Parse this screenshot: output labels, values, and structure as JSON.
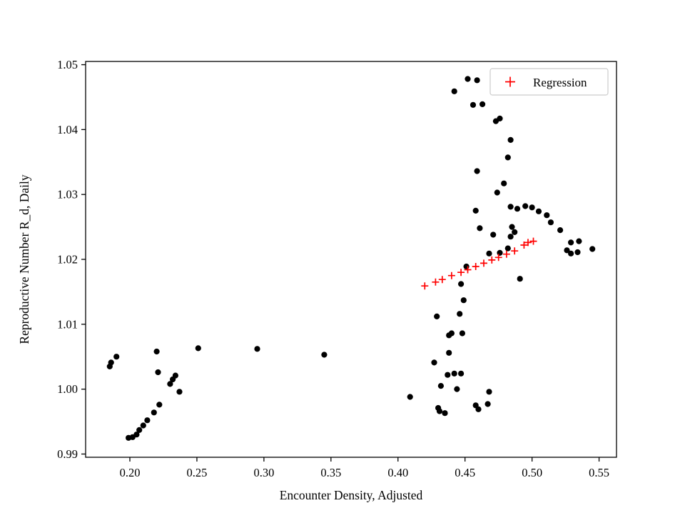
{
  "figure": {
    "background": "#ffffff"
  },
  "chart_data": {
    "type": "scatter",
    "title": "",
    "xlabel": "Encounter Density, Adjusted",
    "ylabel": "Reproductive Number R_d, Daily",
    "xlim": [
      0.167,
      0.563
    ],
    "ylim": [
      0.9895,
      1.0505
    ],
    "xticks": [
      0.2,
      0.25,
      0.3,
      0.35,
      0.4,
      0.45,
      0.5,
      0.55
    ],
    "yticks": [
      0.99,
      1.0,
      1.01,
      1.02,
      1.03,
      1.04,
      1.05
    ],
    "grid": false,
    "legend": {
      "position": "upper right",
      "entries": [
        {
          "label": "Regression",
          "marker": "plus",
          "color": "#ff0000"
        }
      ]
    },
    "series": [
      {
        "name": "observations",
        "marker": "circle",
        "color": "#000000",
        "points": [
          [
            0.185,
            1.0035
          ],
          [
            0.186,
            1.0041
          ],
          [
            0.19,
            1.005
          ],
          [
            0.199,
            0.9925
          ],
          [
            0.202,
            0.9926
          ],
          [
            0.205,
            0.993
          ],
          [
            0.207,
            0.9937
          ],
          [
            0.21,
            0.9944
          ],
          [
            0.213,
            0.9952
          ],
          [
            0.218,
            0.9964
          ],
          [
            0.222,
            0.9976
          ],
          [
            0.22,
            1.0058
          ],
          [
            0.221,
            1.0026
          ],
          [
            0.23,
            1.0008
          ],
          [
            0.232,
            1.0015
          ],
          [
            0.234,
            1.0021
          ],
          [
            0.237,
            0.9996
          ],
          [
            0.251,
            1.0063
          ],
          [
            0.295,
            1.0062
          ],
          [
            0.345,
            1.0053
          ],
          [
            0.409,
            0.9988
          ],
          [
            0.427,
            1.0041
          ],
          [
            0.429,
            1.0112
          ],
          [
            0.43,
            0.9971
          ],
          [
            0.431,
            0.9966
          ],
          [
            0.435,
            0.9963
          ],
          [
            0.432,
            1.0005
          ],
          [
            0.437,
            1.0022
          ],
          [
            0.438,
            1.0056
          ],
          [
            0.438,
            1.0083
          ],
          [
            0.44,
            1.0086
          ],
          [
            0.442,
            1.0024
          ],
          [
            0.444,
            1.0
          ],
          [
            0.447,
            1.0024
          ],
          [
            0.448,
            1.0086
          ],
          [
            0.447,
            1.0162
          ],
          [
            0.449,
            1.0137
          ],
          [
            0.446,
            1.0116
          ],
          [
            0.451,
            1.0189
          ],
          [
            0.458,
            0.9975
          ],
          [
            0.46,
            0.9969
          ],
          [
            0.467,
            0.9977
          ],
          [
            0.468,
            0.9996
          ],
          [
            0.442,
            1.0459
          ],
          [
            0.452,
            1.0478
          ],
          [
            0.459,
            1.0476
          ],
          [
            0.456,
            1.0438
          ],
          [
            0.463,
            1.0439
          ],
          [
            0.473,
            1.0413
          ],
          [
            0.476,
            1.0417
          ],
          [
            0.484,
            1.0384
          ],
          [
            0.482,
            1.0357
          ],
          [
            0.459,
            1.0336
          ],
          [
            0.479,
            1.0317
          ],
          [
            0.474,
            1.0303
          ],
          [
            0.458,
            1.0275
          ],
          [
            0.484,
            1.0281
          ],
          [
            0.489,
            1.0278
          ],
          [
            0.495,
            1.0282
          ],
          [
            0.5,
            1.028
          ],
          [
            0.505,
            1.0274
          ],
          [
            0.511,
            1.0268
          ],
          [
            0.514,
            1.0257
          ],
          [
            0.521,
            1.0245
          ],
          [
            0.461,
            1.0248
          ],
          [
            0.471,
            1.0238
          ],
          [
            0.485,
            1.025
          ],
          [
            0.487,
            1.0242
          ],
          [
            0.484,
            1.0235
          ],
          [
            0.529,
            1.0226
          ],
          [
            0.535,
            1.0228
          ],
          [
            0.526,
            1.0214
          ],
          [
            0.529,
            1.0209
          ],
          [
            0.534,
            1.0211
          ],
          [
            0.545,
            1.0216
          ],
          [
            0.468,
            1.0209
          ],
          [
            0.476,
            1.021
          ],
          [
            0.482,
            1.0217
          ],
          [
            0.491,
            1.017
          ]
        ]
      },
      {
        "name": "Regression",
        "marker": "plus",
        "color": "#ff0000",
        "points": [
          [
            0.42,
            1.0159
          ],
          [
            0.428,
            1.0165
          ],
          [
            0.433,
            1.0169
          ],
          [
            0.44,
            1.0175
          ],
          [
            0.447,
            1.018
          ],
          [
            0.452,
            1.0184
          ],
          [
            0.458,
            1.0189
          ],
          [
            0.464,
            1.0194
          ],
          [
            0.47,
            1.0199
          ],
          [
            0.475,
            1.0203
          ],
          [
            0.481,
            1.0208
          ],
          [
            0.487,
            1.0213
          ],
          [
            0.494,
            1.0222
          ],
          [
            0.497,
            1.0226
          ],
          [
            0.501,
            1.0228
          ]
        ]
      }
    ]
  }
}
